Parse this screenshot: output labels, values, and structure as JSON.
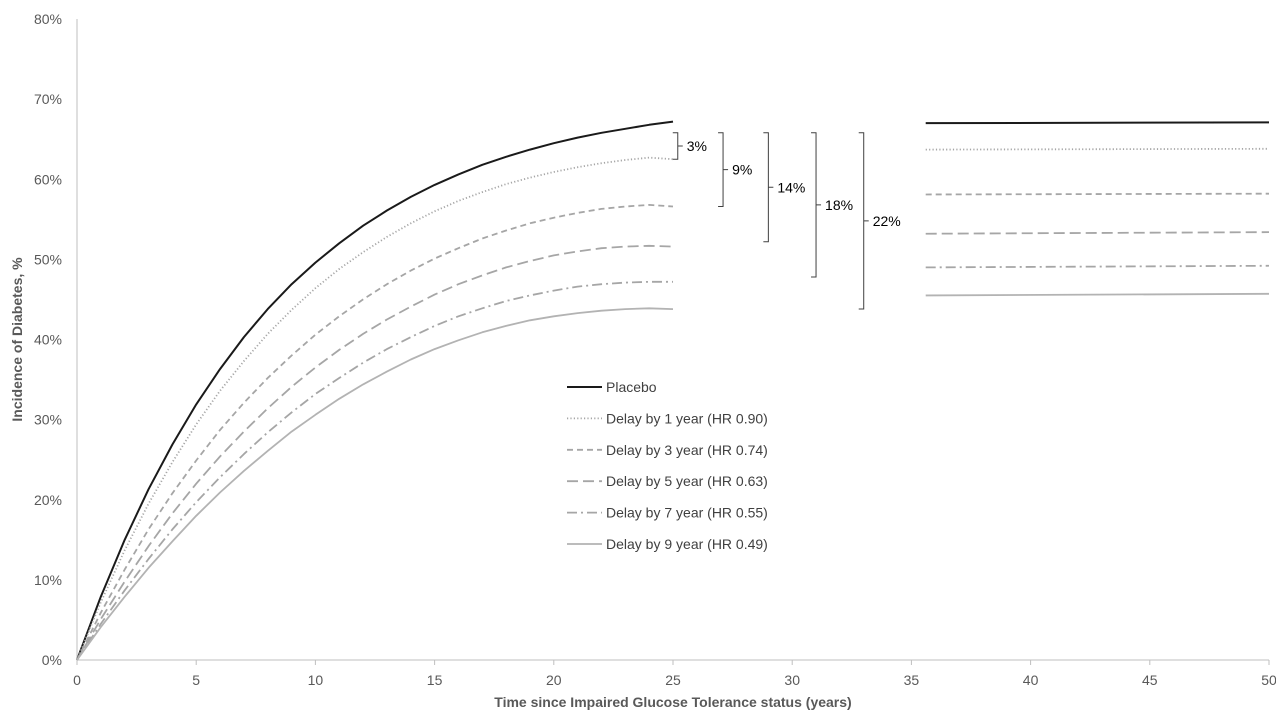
{
  "chart_data": {
    "type": "line",
    "title": "",
    "xlabel": "Time since Impaired Glucose Tolerance status (years)",
    "ylabel": "Incidence of Diabetes, %",
    "xlim": [
      0,
      50
    ],
    "ylim": [
      0,
      80
    ],
    "x_ticks": [
      "0",
      "5",
      "10",
      "15",
      "20",
      "25",
      "30",
      "35",
      "40",
      "45",
      "50"
    ],
    "y_ticks": [
      "0%",
      "10%",
      "20%",
      "30%",
      "40%",
      "50%",
      "60%",
      "70%",
      "80%"
    ],
    "grid": false,
    "legend_position": "center",
    "x": [
      0,
      1,
      2,
      3,
      4,
      5,
      6,
      7,
      8,
      9,
      10,
      11,
      12,
      13,
      14,
      15,
      16,
      17,
      18,
      19,
      20,
      21,
      22,
      23,
      24,
      25
    ],
    "plateau_x": [
      35.6,
      50
    ],
    "series": [
      {
        "name": "Placebo",
        "color": "#1a1a1a",
        "dash": "solid",
        "values": [
          0,
          7.9,
          15,
          21.3,
          26.9,
          31.9,
          36.3,
          40.3,
          43.8,
          46.9,
          49.6,
          52.0,
          54.2,
          56.1,
          57.8,
          59.3,
          60.6,
          61.8,
          62.8,
          63.7,
          64.5,
          65.2,
          65.8,
          66.3,
          66.8,
          67.2
        ],
        "plateau": [
          67.0,
          67.1
        ]
      },
      {
        "name": "Delay by 1 year (HR 0.90)",
        "color": "#a6a6a6",
        "dash": "dotted",
        "values": [
          0,
          7.2,
          13.7,
          19.5,
          24.7,
          29.4,
          33.6,
          37.3,
          40.7,
          43.7,
          46.4,
          48.8,
          50.9,
          52.8,
          54.5,
          56.0,
          57.3,
          58.4,
          59.4,
          60.2,
          60.9,
          61.5,
          62.0,
          62.4,
          62.7,
          62.5
        ],
        "plateau": [
          63.7,
          63.8
        ]
      },
      {
        "name": "Delay by 3 year (HR 0.74)",
        "color": "#a6a6a6",
        "dash": "short-dash",
        "values": [
          0,
          5.9,
          11.3,
          16.3,
          20.8,
          24.9,
          28.7,
          32.1,
          35.2,
          38.0,
          40.6,
          42.9,
          45.0,
          46.9,
          48.6,
          50.1,
          51.4,
          52.6,
          53.6,
          54.5,
          55.2,
          55.8,
          56.3,
          56.6,
          56.8,
          56.6
        ],
        "plateau": [
          58.1,
          58.2
        ]
      },
      {
        "name": "Delay by 5 year (HR 0.63)",
        "color": "#a6a6a6",
        "dash": "long-dash",
        "values": [
          0,
          5.1,
          9.8,
          14.2,
          18.3,
          22.0,
          25.4,
          28.5,
          31.4,
          34.1,
          36.5,
          38.7,
          40.7,
          42.5,
          44.1,
          45.6,
          46.9,
          48.0,
          49.0,
          49.8,
          50.5,
          51.0,
          51.4,
          51.6,
          51.7,
          51.6
        ],
        "plateau": [
          53.2,
          53.4
        ]
      },
      {
        "name": "Delay by 7 year (HR 0.55)",
        "color": "#a6a6a6",
        "dash": "dash-dot",
        "values": [
          0,
          4.5,
          8.7,
          12.6,
          16.3,
          19.7,
          22.8,
          25.7,
          28.4,
          30.9,
          33.2,
          35.2,
          37.1,
          38.8,
          40.3,
          41.7,
          42.9,
          43.9,
          44.8,
          45.5,
          46.1,
          46.6,
          46.9,
          47.1,
          47.2,
          47.2
        ],
        "plateau": [
          49.0,
          49.2
        ]
      },
      {
        "name": "Delay by 9 year (HR 0.49)",
        "color": "#b3b3b3",
        "dash": "solid",
        "values": [
          0,
          4.1,
          7.9,
          11.5,
          14.8,
          18.0,
          20.9,
          23.6,
          26.1,
          28.5,
          30.6,
          32.6,
          34.4,
          36.0,
          37.5,
          38.8,
          39.9,
          40.9,
          41.7,
          42.4,
          42.9,
          43.3,
          43.6,
          43.8,
          43.9,
          43.8
        ],
        "plateau": [
          45.5,
          45.7
        ]
      }
    ],
    "annotations": [
      {
        "label": "3%",
        "bracket_x": 25.2,
        "from": 62.5,
        "to": 65.8
      },
      {
        "label": "9%",
        "bracket_x": 27.1,
        "from": 56.6,
        "to": 65.8
      },
      {
        "label": "14%",
        "bracket_x": 29.0,
        "from": 52.2,
        "to": 65.8
      },
      {
        "label": "18%",
        "bracket_x": 31.0,
        "from": 47.8,
        "to": 65.8
      },
      {
        "label": "22%",
        "bracket_x": 33.0,
        "from": 43.8,
        "to": 65.8
      }
    ]
  }
}
